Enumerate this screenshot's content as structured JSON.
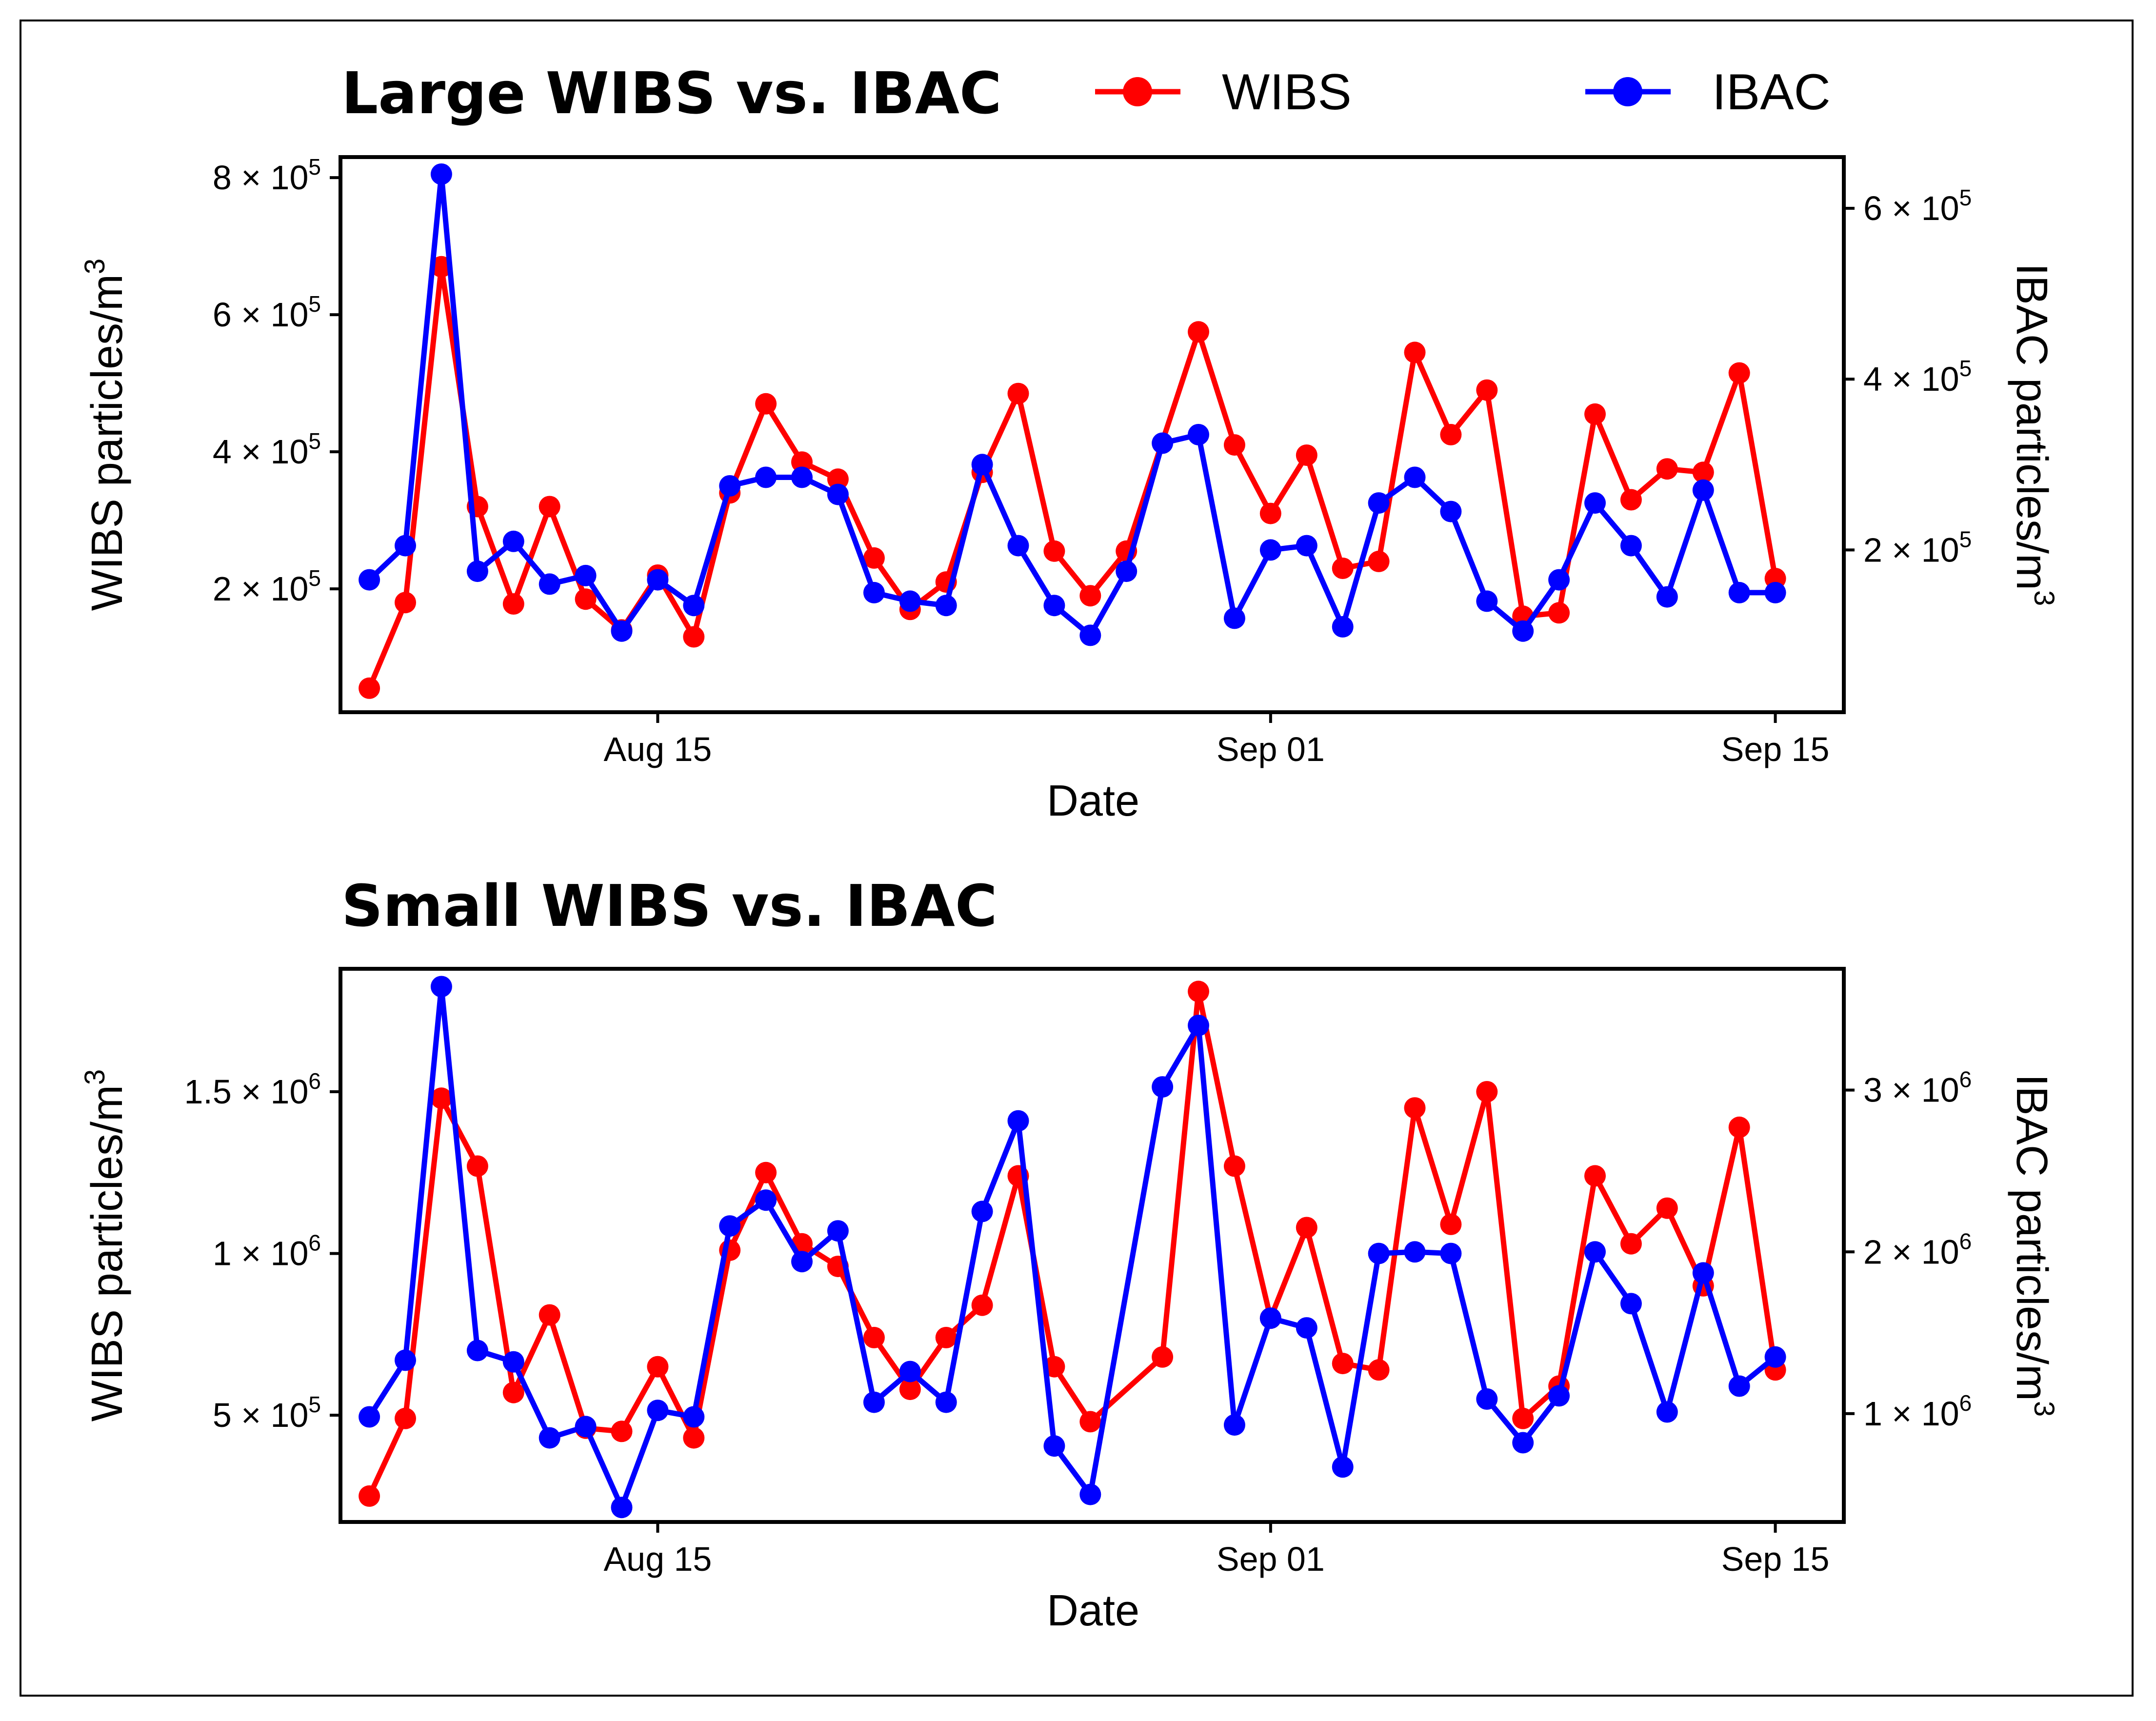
{
  "legend": {
    "wibs_label": "WIBS",
    "ibac_label": "IBAC",
    "wibs_color": "#ff0000",
    "ibac_color": "#0000ff"
  },
  "chart_data": [
    {
      "type": "line",
      "title": "Large WIBS vs. IBAC",
      "xlabel": "Date",
      "ylabel_left": "WIBS particles/m",
      "ylabel_right": "IBAC particles/m",
      "ylabel_sup": "3",
      "x_ticks": [
        {
          "label": "Aug 15",
          "value": 15
        },
        {
          "label": "Sep 01",
          "value": 32
        },
        {
          "label": "Sep 15",
          "value": 46
        }
      ],
      "xlim": [
        6.2,
        47.9
      ],
      "ylim_left": [
        20000,
        830000
      ],
      "ylim_right": [
        10000,
        660000
      ],
      "y_ticks_left": [
        {
          "base": "2 × 10",
          "exp": "5",
          "value": 200000
        },
        {
          "base": "4 × 10",
          "exp": "5",
          "value": 400000
        },
        {
          "base": "6 × 10",
          "exp": "5",
          "value": 600000
        },
        {
          "base": "8 × 10",
          "exp": "5",
          "value": 800000
        }
      ],
      "y_ticks_right": [
        {
          "base": "2 × 10",
          "exp": "5",
          "value": 200000
        },
        {
          "base": "4 × 10",
          "exp": "5",
          "value": 400000
        },
        {
          "base": "6 × 10",
          "exp": "5",
          "value": 600000
        }
      ],
      "series": [
        {
          "name": "WIBS",
          "axis": "left",
          "x": [
            7,
            8,
            9,
            10,
            11,
            12,
            13,
            14,
            15,
            16,
            17,
            18,
            19,
            20,
            21,
            22,
            23,
            24,
            25,
            26,
            27,
            28,
            30,
            31,
            32,
            33,
            34,
            35,
            36,
            37,
            38,
            39,
            40,
            41,
            42,
            43,
            44,
            45,
            46
          ],
          "y": [
            55000,
            180000,
            670000,
            320000,
            178000,
            320000,
            185000,
            140000,
            220000,
            130000,
            340000,
            470000,
            385000,
            360000,
            245000,
            170000,
            210000,
            370000,
            485000,
            255000,
            190000,
            255000,
            575000,
            410000,
            310000,
            395000,
            230000,
            240000,
            545000,
            425000,
            490000,
            160000,
            165000,
            455000,
            330000,
            375000,
            370000,
            515000,
            215000
          ]
        },
        {
          "name": "IBAC",
          "axis": "right",
          "x": [
            7,
            8,
            9,
            10,
            11,
            12,
            13,
            14,
            15,
            16,
            17,
            18,
            19,
            20,
            21,
            22,
            23,
            24,
            25,
            26,
            27,
            28,
            29,
            30,
            31,
            32,
            33,
            34,
            35,
            36,
            37,
            38,
            39,
            40,
            41,
            42,
            43,
            44,
            45,
            46
          ],
          "y": [
            165000,
            205000,
            640000,
            175000,
            210000,
            160000,
            170000,
            105000,
            165000,
            135000,
            275000,
            285000,
            285000,
            265000,
            150000,
            140000,
            135000,
            300000,
            205000,
            135000,
            100000,
            175000,
            325000,
            335000,
            120000,
            200000,
            205000,
            110000,
            255000,
            285000,
            245000,
            140000,
            105000,
            165000,
            255000,
            205000,
            145000,
            270000,
            150000,
            150000
          ]
        }
      ]
    },
    {
      "type": "line",
      "title": "Small WIBS vs. IBAC",
      "xlabel": "Date",
      "ylabel_left": "WIBS particles/m",
      "ylabel_right": "IBAC particles/m",
      "ylabel_sup": "3",
      "x_ticks": [
        {
          "label": "Aug 15",
          "value": 15
        },
        {
          "label": "Sep 01",
          "value": 32
        },
        {
          "label": "Sep 15",
          "value": 46
        }
      ],
      "xlim": [
        6.2,
        47.9
      ],
      "ylim_left": [
        170000,
        1880000
      ],
      "ylim_right": [
        330000,
        3750000
      ],
      "y_ticks_left": [
        {
          "base": "5 × 10",
          "exp": "5",
          "value": 500000
        },
        {
          "base": "1 × 10",
          "exp": "6",
          "value": 1000000
        },
        {
          "base": "1.5 × 10",
          "exp": "6",
          "value": 1500000
        }
      ],
      "y_ticks_right": [
        {
          "base": "1 × 10",
          "exp": "6",
          "value": 1000000
        },
        {
          "base": "2 × 10",
          "exp": "6",
          "value": 2000000
        },
        {
          "base": "3 × 10",
          "exp": "6",
          "value": 3000000
        }
      ],
      "series": [
        {
          "name": "WIBS",
          "axis": "left",
          "x": [
            7,
            8,
            9,
            10,
            11,
            12,
            13,
            14,
            15,
            16,
            17,
            18,
            19,
            20,
            21,
            22,
            23,
            24,
            25,
            26,
            27,
            29,
            30,
            31,
            32,
            33,
            34,
            35,
            36,
            37,
            38,
            39,
            40,
            41,
            42,
            43,
            44,
            45,
            46
          ],
          "y": [
            250000,
            490000,
            1480000,
            1270000,
            570000,
            810000,
            460000,
            450000,
            650000,
            430000,
            1010000,
            1250000,
            1030000,
            960000,
            740000,
            580000,
            740000,
            840000,
            1240000,
            650000,
            480000,
            680000,
            1810000,
            1270000,
            800000,
            1080000,
            660000,
            640000,
            1450000,
            1090000,
            1500000,
            490000,
            590000,
            1240000,
            1030000,
            1140000,
            900000,
            1390000,
            640000
          ]
        },
        {
          "name": "IBAC",
          "axis": "right",
          "x": [
            7,
            8,
            9,
            10,
            11,
            12,
            13,
            14,
            15,
            16,
            17,
            18,
            19,
            20,
            21,
            22,
            23,
            24,
            25,
            26,
            27,
            29,
            30,
            31,
            32,
            33,
            34,
            35,
            36,
            37,
            38,
            39,
            40,
            41,
            42,
            43,
            44,
            45,
            46
          ],
          "y": [
            980000,
            1330000,
            3640000,
            1390000,
            1320000,
            850000,
            920000,
            420000,
            1020000,
            980000,
            2160000,
            2320000,
            1940000,
            2130000,
            1070000,
            1260000,
            1070000,
            2250000,
            2810000,
            800000,
            500000,
            3020000,
            3400000,
            930000,
            1590000,
            1530000,
            670000,
            1990000,
            2000000,
            1990000,
            1090000,
            820000,
            1110000,
            2000000,
            1680000,
            1010000,
            1870000,
            1170000,
            1350000
          ]
        }
      ]
    }
  ]
}
